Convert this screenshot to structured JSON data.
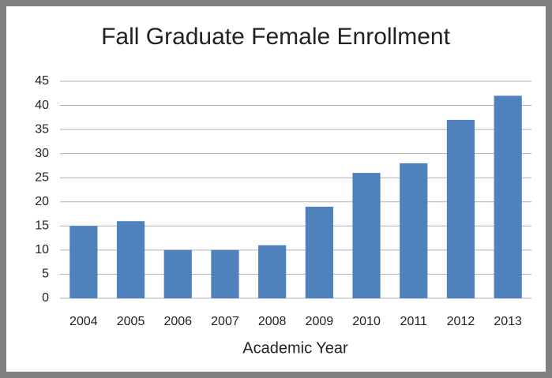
{
  "chart_data": {
    "type": "bar",
    "title": "Fall Graduate Female Enrollment",
    "x_label": "Academic Year",
    "categories": [
      "2004",
      "2005",
      "2006",
      "2007",
      "2008",
      "2009",
      "2010",
      "2011",
      "2012",
      "2013"
    ],
    "values": [
      15,
      16,
      10,
      10,
      11,
      19,
      26,
      28,
      37,
      42
    ],
    "color": "#4f81bd",
    "ylim": [
      0,
      45
    ],
    "yticks": [
      0,
      5,
      10,
      15,
      20,
      25,
      30,
      35,
      40,
      45
    ],
    "grid": true
  }
}
